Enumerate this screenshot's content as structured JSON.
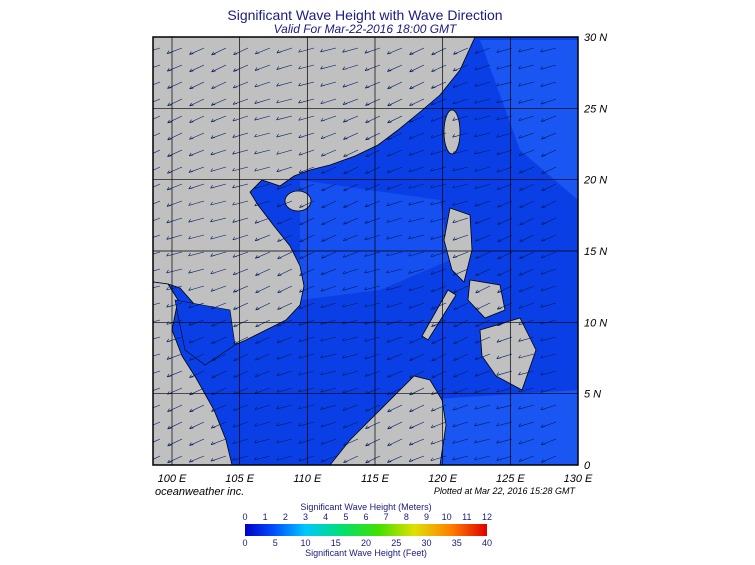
{
  "header": {
    "title": "Significant Wave Height with Wave Direction",
    "subtitle": "Valid For Mar-22-2016 18:00 GMT"
  },
  "map": {
    "lat_labels": [
      "30 N",
      "25 N",
      "20 N",
      "15 N",
      "10 N",
      "5 N",
      "0"
    ],
    "lon_labels": [
      "100 E",
      "105 E",
      "110 E",
      "115 E",
      "120 E",
      "125 E",
      "130 E"
    ]
  },
  "footer": {
    "credit": "oceanweather inc.",
    "plotted": "Plotted at Mar 22, 2016 15:28 GMT"
  },
  "colorbar": {
    "meters_title": "Significant Wave Height (Meters)",
    "meters_ticks": [
      0,
      1,
      2,
      3,
      4,
      5,
      6,
      7,
      8,
      9,
      10,
      11,
      12
    ],
    "feet_ticks": [
      0,
      5,
      10,
      15,
      20,
      25,
      30,
      35,
      40
    ],
    "feet_title": "Significant Wave Height (Feet)"
  }
}
